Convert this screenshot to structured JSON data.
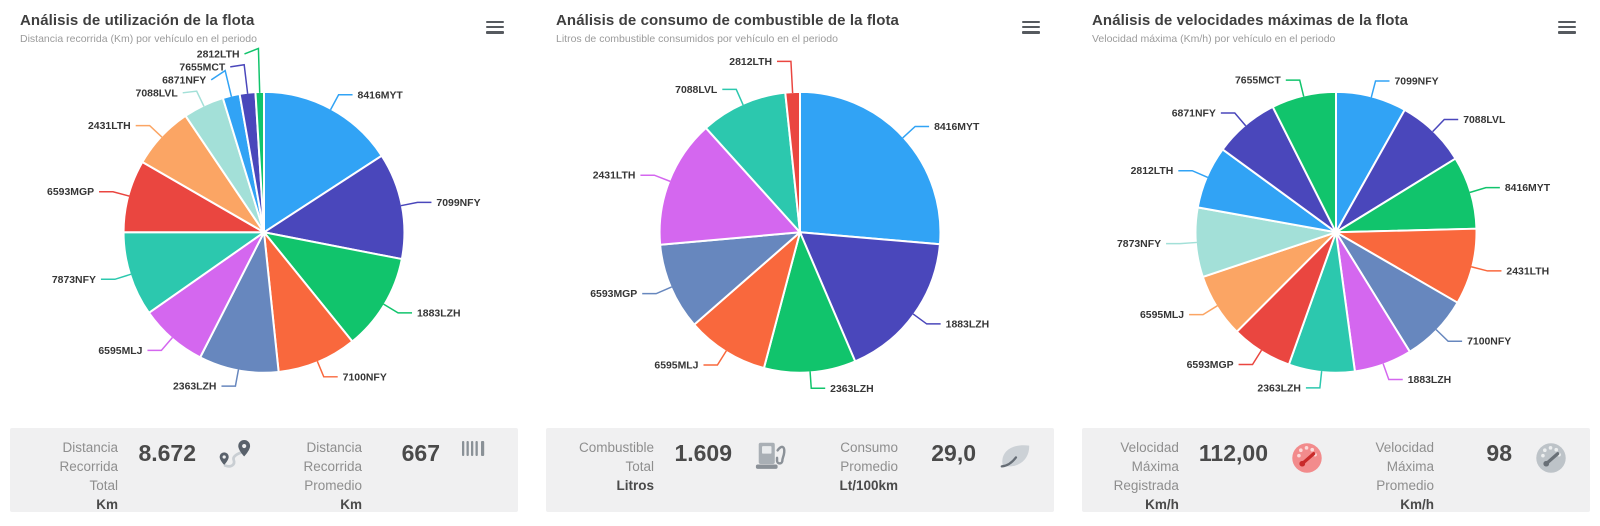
{
  "palette": [
    "#31a3f5",
    "#4a47bb",
    "#11c46c",
    "#f9683d",
    "#6787be",
    "#d467ef",
    "#2cc8ae",
    "#ea4640",
    "#fba564",
    "#a3e0d8"
  ],
  "text_colors": {
    "title": "#3f3f3f",
    "subtitle": "#9b9b9b",
    "slice_label": "#363636",
    "stat_label": "#8e8e8e",
    "stat_value": "#4a4a4a"
  },
  "chart_data": [
    {
      "type": "pie",
      "title": "Análisis de utilización de la flota",
      "subtitle": "Distancia recorrida (Km) por vehículo en el periodo",
      "unit": "Km",
      "legend": "none",
      "label_style": "outside-callout",
      "start_angle": 0,
      "direction": "clockwise",
      "labels": [
        "8416MYT",
        "7099NFY",
        "1883LZH",
        "7100NFY",
        "2363LZH",
        "6595MLJ",
        "7873NFY",
        "6593MGP",
        "2431LTH",
        "7088LVL",
        "6871NFY",
        "7655MCT",
        "2812LTH"
      ],
      "values": [
        1373,
        1060,
        964,
        795,
        795,
        674,
        843,
        723,
        626,
        409,
        169,
        157,
        84
      ],
      "colors": [
        "#31a3f5",
        "#4a47bb",
        "#11c46c",
        "#f9683d",
        "#6787be",
        "#d467ef",
        "#2cc8ae",
        "#ea4640",
        "#fba564",
        "#a3e0d8",
        "#31a3f5",
        "#4a47bb",
        "#11c46c"
      ],
      "total": 8672,
      "average": 667
    },
    {
      "type": "pie",
      "title": "Análisis de consumo de combustible de la flota",
      "subtitle": "Litros de combustible consumidos por vehículo en el periodo",
      "unit": "Litros",
      "legend": "none",
      "label_style": "outside-callout",
      "start_angle": 0,
      "direction": "clockwise",
      "labels": [
        "8416MYT",
        "1883LZH",
        "2363LZH",
        "6595MLJ",
        "6593MGP",
        "2431LTH",
        "7088LVL",
        "2812LTH"
      ],
      "values": [
        424,
        277,
        170,
        152,
        161,
        237,
        161,
        27
      ],
      "colors": [
        "#31a3f5",
        "#4a47bb",
        "#11c46c",
        "#f9683d",
        "#6787be",
        "#d467ef",
        "#2cc8ae",
        "#ea4640"
      ],
      "total": 1609,
      "average_consumption_lt_100km": 29.0
    },
    {
      "type": "pie",
      "title": "Análisis de velocidades máximas de la flota",
      "subtitle": "Velocidad máxima (Km/h) por vehículo en el periodo",
      "unit": "Km/h",
      "legend": "none",
      "label_style": "outside-callout",
      "start_angle": 0,
      "direction": "clockwise",
      "labels": [
        "7099NFY",
        "7088LVL",
        "8416MYT",
        "2431LTH",
        "7100NFY",
        "1883LZH",
        "2363LZH",
        "6593MGP",
        "6595MLJ",
        "7873NFY",
        "2812LTH",
        "6871NFY",
        "7655MCT"
      ],
      "values": [
        104,
        103,
        107,
        112,
        100,
        85,
        97,
        90,
        94,
        102,
        92,
        96,
        95
      ],
      "colors": [
        "#31a3f5",
        "#4a47bb",
        "#11c46c",
        "#f9683d",
        "#6787be",
        "#d467ef",
        "#2cc8ae",
        "#ea4640",
        "#fba564",
        "#a3e0d8",
        "#31a3f5",
        "#4a47bb",
        "#11c46c"
      ],
      "max_registered": 112.0,
      "average_max": 98
    }
  ],
  "panels": [
    {
      "stats": [
        {
          "lines": [
            "Distancia",
            "Recorrida",
            "Total"
          ],
          "unit": "Km",
          "value": "8.672",
          "icon": "route-icon"
        },
        {
          "lines": [
            "Distancia",
            "Recorrida",
            "Promedio"
          ],
          "unit": "Km",
          "value": "667",
          "icon": "tally-bars-icon"
        }
      ]
    },
    {
      "stats": [
        {
          "lines": [
            "Combustible",
            "Total"
          ],
          "unit": "Litros",
          "value": "1.609",
          "icon": "fuel-pump-icon"
        },
        {
          "lines": [
            "Consumo",
            "Promedio"
          ],
          "unit": "Lt/100km",
          "value": "29,0",
          "icon": "leaf-icon"
        }
      ]
    },
    {
      "stats": [
        {
          "lines": [
            "Velocidad",
            "Máxima",
            "Registrada"
          ],
          "unit": "Km/h",
          "value": "112,00",
          "icon": "speedometer-red-icon"
        },
        {
          "lines": [
            "Velocidad",
            "Máxima",
            "Promedio"
          ],
          "unit": "Km/h",
          "value": "98",
          "icon": "speedometer-gray-icon"
        }
      ]
    }
  ]
}
